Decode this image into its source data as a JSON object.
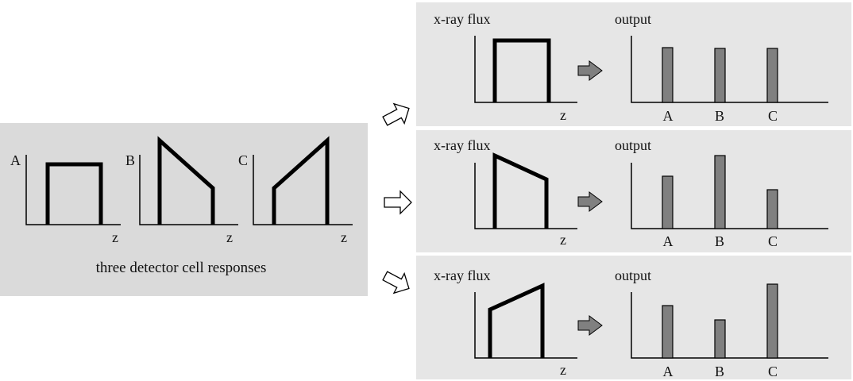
{
  "left_panel": {
    "caption": "three detector cell responses",
    "cells": [
      {
        "label": "A",
        "axis_label": "z"
      },
      {
        "label": "B",
        "axis_label": "z"
      },
      {
        "label": "C",
        "axis_label": "z"
      }
    ]
  },
  "rows": [
    {
      "flux_title": "x-ray flux",
      "flux_axis_label": "z",
      "output_title": "output",
      "bar_labels": [
        "A",
        "B",
        "C"
      ],
      "bar_values": [
        69,
        68,
        68
      ]
    },
    {
      "flux_title": "x-ray flux",
      "flux_axis_label": "z",
      "output_title": "output",
      "bar_labels": [
        "A",
        "B",
        "C"
      ],
      "bar_values": [
        66,
        92,
        49
      ]
    },
    {
      "flux_title": "x-ray flux",
      "flux_axis_label": "z",
      "output_title": "output",
      "bar_labels": [
        "A",
        "B",
        "C"
      ],
      "bar_values": [
        66,
        48,
        93
      ]
    }
  ],
  "colors": {
    "panel_bg": "#e6e6e6",
    "left_panel_bg": "#dadada",
    "bar_fill": "#808080",
    "line": "#000000"
  }
}
